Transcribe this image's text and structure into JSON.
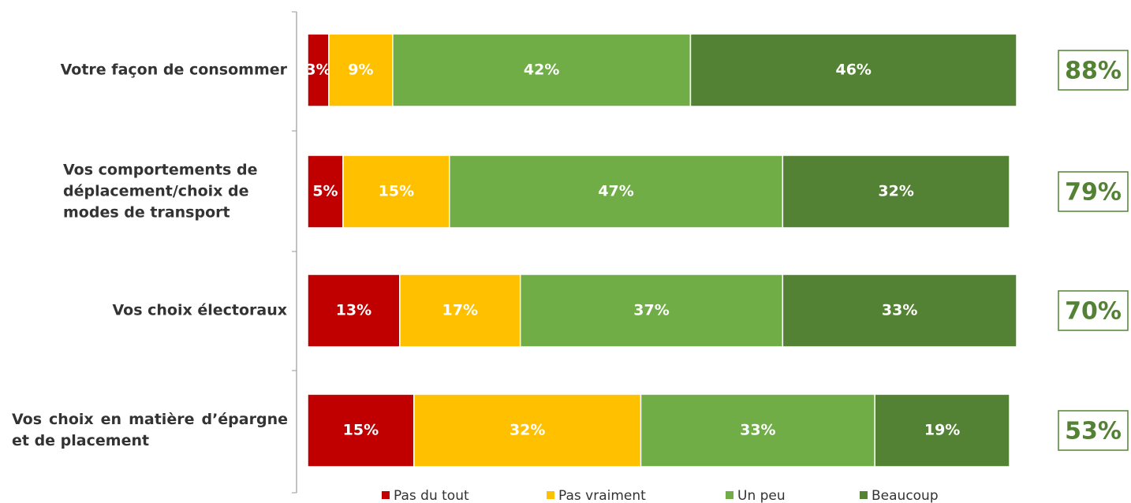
{
  "chart_data": {
    "type": "stacked_barh",
    "categories": [
      "Votre façon de consommer",
      "Vos comportements de déplacement/choix de modes de transport",
      "Vos choix électoraux",
      "Vos choix en matière d’épargne et de placement"
    ],
    "series": [
      {
        "name": "Pas du tout",
        "color": "#c00000",
        "values": [
          3,
          5,
          13,
          15
        ],
        "value_labels": [
          "3%",
          "5%",
          "13%",
          "15%"
        ]
      },
      {
        "name": "Pas vraiment",
        "color": "#ffc000",
        "values": [
          9,
          15,
          17,
          32
        ],
        "value_labels": [
          "9%",
          "15%",
          "17%",
          "32%"
        ]
      },
      {
        "name": "Un peu",
        "color": "#70ad47",
        "values": [
          42,
          47,
          37,
          33
        ],
        "value_labels": [
          "42%",
          "47%",
          "37%",
          "33%"
        ]
      },
      {
        "name": "Beaucoup",
        "color": "#548235",
        "values": [
          46,
          32,
          33,
          19
        ],
        "value_labels": [
          "46%",
          "32%",
          "33%",
          "19%"
        ]
      }
    ],
    "totals": {
      "color": "#548235",
      "values": [
        88,
        79,
        70,
        53
      ],
      "value_labels": [
        "88%",
        "79%",
        "70%",
        "53%"
      ]
    },
    "xlim": [
      0,
      100
    ],
    "legend": "bottom"
  }
}
